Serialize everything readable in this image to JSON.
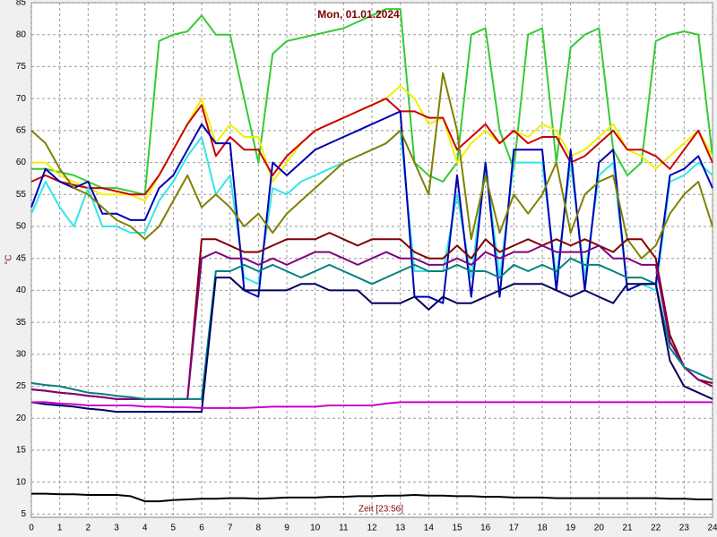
{
  "chart_data": {
    "type": "line",
    "title": "Mon, 01.01.2024",
    "y_label": "°C",
    "x_label": "Zeit [23:56]",
    "x": [
      0,
      0.5,
      1,
      1.5,
      2,
      2.5,
      3,
      3.5,
      4,
      4.5,
      5,
      5.5,
      6,
      6.5,
      7,
      7.5,
      8,
      8.5,
      9,
      9.5,
      10,
      10.5,
      11,
      11.5,
      12,
      12.5,
      13,
      13.5,
      14,
      14.5,
      15,
      15.5,
      16,
      16.5,
      17,
      17.5,
      18,
      18.5,
      19,
      19.5,
      20,
      20.5,
      21,
      21.5,
      22,
      22.5,
      23,
      23.5,
      24
    ],
    "xlim": [
      0,
      24
    ],
    "xticks": [
      0,
      1,
      2,
      3,
      4,
      5,
      6,
      7,
      8,
      9,
      10,
      11,
      12,
      13,
      14,
      15,
      16,
      17,
      18,
      19,
      20,
      21,
      22,
      23,
      24
    ],
    "ylim": [
      4.5,
      85
    ],
    "yticks": [
      5,
      10,
      15,
      20,
      25,
      30,
      35,
      40,
      45,
      50,
      55,
      60,
      65,
      70,
      75,
      80,
      85
    ],
    "grid": true,
    "series": [
      {
        "color": "#33cc33",
        "values": [
          59,
          59,
          58.5,
          58,
          57,
          56,
          56,
          55.5,
          55,
          79,
          80,
          80.5,
          83,
          80,
          80,
          70,
          60,
          77,
          79,
          79.5,
          80,
          80.5,
          81,
          82,
          83,
          84,
          84,
          60,
          58,
          57,
          60,
          80,
          81,
          65,
          59,
          80,
          81,
          60,
          78,
          80,
          81,
          62,
          58,
          60,
          79,
          80,
          80.5,
          80,
          61
        ]
      },
      {
        "color": "#f0f000",
        "values": [
          60,
          60,
          58,
          57,
          56,
          55,
          55,
          55,
          54,
          58,
          62,
          66,
          70,
          63,
          66,
          64,
          64,
          57,
          60,
          63,
          65,
          66,
          67,
          68,
          69,
          70,
          72,
          70,
          66,
          67,
          60,
          63,
          65,
          63,
          65,
          64,
          66,
          65,
          61,
          62,
          64,
          66,
          62,
          61,
          59,
          61,
          63,
          65,
          61
        ]
      },
      {
        "color": "#cc0000",
        "values": [
          57,
          58,
          57,
          56.5,
          56,
          56,
          55.5,
          55,
          55,
          58,
          62,
          66,
          69,
          61,
          64,
          62,
          62,
          58,
          61,
          63,
          65,
          66,
          67,
          68,
          69,
          70,
          68,
          68,
          67,
          67,
          62,
          64,
          66,
          63,
          65,
          63,
          64,
          64,
          60,
          61,
          63,
          65,
          62,
          62,
          61,
          59,
          62,
          65,
          60
        ]
      },
      {
        "color": "#33e6e6",
        "values": [
          52,
          57,
          53,
          50,
          56,
          50,
          50,
          49,
          49,
          54,
          57,
          61,
          64,
          55,
          58,
          42,
          41,
          56,
          55,
          57,
          58,
          59,
          60,
          61,
          62,
          63,
          65,
          43,
          43,
          43,
          55,
          42,
          60,
          42,
          60,
          60,
          60,
          42,
          60,
          42,
          58,
          60,
          40,
          41,
          40,
          57,
          58,
          60,
          58
        ]
      },
      {
        "color": "#0000b4",
        "values": [
          53,
          59,
          57,
          56,
          57,
          52,
          52,
          51,
          51,
          56,
          58,
          62,
          66,
          63,
          63,
          40,
          39,
          60,
          58,
          60,
          62,
          63,
          64,
          65,
          66,
          67,
          68,
          39,
          39,
          38,
          58,
          39,
          60,
          39,
          62,
          62,
          62,
          40,
          62,
          40,
          60,
          62,
          40,
          41,
          41,
          58,
          59,
          61,
          56
        ]
      },
      {
        "color": "#808000",
        "values": [
          65,
          63,
          59,
          56,
          55,
          53,
          51,
          50,
          48,
          50,
          54,
          58,
          53,
          55,
          53,
          50,
          52,
          49,
          52,
          54,
          56,
          58,
          60,
          61,
          62,
          63,
          65,
          60,
          55,
          74,
          65,
          48,
          58,
          49,
          55,
          52,
          55,
          60,
          49,
          55,
          57,
          58,
          48,
          45,
          47,
          52,
          55,
          57,
          50
        ]
      },
      {
        "color": "#800000",
        "values": [
          24.5,
          24.3,
          24,
          23.8,
          23.5,
          23.3,
          23,
          23,
          23,
          23,
          23,
          23,
          48,
          48,
          47,
          46,
          46,
          47,
          48,
          48,
          48,
          49,
          48,
          47,
          48,
          48,
          48,
          46,
          45,
          45,
          47,
          45,
          48,
          46,
          47,
          48,
          47,
          48,
          47,
          48,
          47,
          46,
          48,
          48,
          45,
          33,
          28,
          26,
          25.5
        ]
      },
      {
        "color": "#800080",
        "values": [
          24.5,
          24.3,
          24,
          23.8,
          23.5,
          23.3,
          23,
          23,
          23,
          23,
          23,
          23,
          45,
          46,
          45,
          45,
          44,
          45,
          44,
          45,
          46,
          46,
          45,
          44,
          45,
          46,
          45,
          45,
          44,
          44,
          45,
          44,
          46,
          45,
          46,
          46,
          47,
          46,
          46,
          46,
          47,
          45,
          45,
          44,
          44,
          32,
          28,
          26,
          25
        ]
      },
      {
        "color": "#008080",
        "values": [
          25.5,
          25.2,
          25,
          24.5,
          24,
          23.8,
          23.5,
          23.3,
          23,
          23,
          23,
          23,
          23,
          43,
          43,
          44,
          43,
          44,
          43,
          42,
          43,
          44,
          43,
          42,
          41,
          42,
          43,
          44,
          43,
          43,
          44,
          43,
          43,
          42,
          44,
          43,
          44,
          43,
          45,
          44,
          44,
          43,
          42,
          42,
          41,
          31,
          28,
          27,
          26
        ]
      },
      {
        "color": "#000060",
        "values": [
          22.5,
          22.2,
          22,
          21.8,
          21.5,
          21.3,
          21,
          21,
          21,
          21,
          21,
          21,
          21,
          42,
          42,
          40,
          40,
          40,
          40,
          41,
          41,
          40,
          40,
          40,
          38,
          38,
          38,
          39,
          37,
          39,
          38,
          38,
          39,
          40,
          41,
          41,
          41,
          40,
          39,
          40,
          39,
          38,
          41,
          41,
          41,
          29,
          25,
          24,
          23
        ]
      },
      {
        "color": "#cc00cc",
        "values": [
          22.5,
          22.5,
          22.3,
          22.2,
          22,
          22,
          22,
          22,
          21.8,
          21.8,
          21.7,
          21.7,
          21.6,
          21.6,
          21.6,
          21.6,
          21.7,
          21.8,
          21.8,
          21.8,
          21.8,
          22,
          22,
          22,
          22,
          22.3,
          22.5,
          22.5,
          22.5,
          22.5,
          22.5,
          22.5,
          22.5,
          22.5,
          22.5,
          22.5,
          22.5,
          22.5,
          22.5,
          22.5,
          22.5,
          22.5,
          22.5,
          22.5,
          22.5,
          22.5,
          22.5,
          22.5,
          22.5
        ]
      },
      {
        "color": "#000000",
        "values": [
          8.2,
          8.2,
          8.1,
          8.1,
          8,
          8,
          8,
          7.8,
          7,
          7,
          7.2,
          7.3,
          7.4,
          7.4,
          7.5,
          7.5,
          7.4,
          7.5,
          7.6,
          7.6,
          7.6,
          7.7,
          7.7,
          7.8,
          7.8,
          7.9,
          7.9,
          8,
          7.9,
          7.9,
          7.8,
          7.8,
          7.7,
          7.7,
          7.6,
          7.6,
          7.6,
          7.5,
          7.5,
          7.5,
          7.5,
          7.5,
          7.5,
          7.5,
          7.5,
          7.4,
          7.4,
          7.3,
          7.3
        ]
      }
    ]
  }
}
